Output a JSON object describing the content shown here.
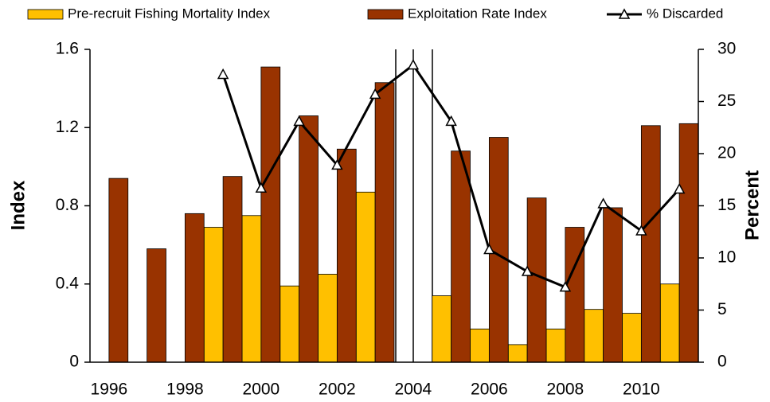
{
  "chart_data": {
    "type": "bar_line",
    "categories": [
      "1996",
      null,
      "1998",
      null,
      "2000",
      null,
      "2002",
      null,
      "2004",
      null,
      "2006",
      null,
      "2008",
      null,
      "2010",
      null
    ],
    "series": [
      {
        "name": "Pre-recruit Fishing Mortality Index",
        "color": "#ffc000",
        "type": "bar",
        "values": [
          null,
          null,
          null,
          0.69,
          0.75,
          0.39,
          0.45,
          0.87,
          null,
          0.34,
          0.17,
          0.09,
          0.17,
          0.27,
          0.25,
          0.4
        ]
      },
      {
        "name": "Exploitation Rate Index",
        "color": "#993300",
        "type": "bar",
        "values": [
          0.94,
          0.58,
          0.76,
          0.95,
          1.51,
          1.26,
          1.09,
          1.43,
          null,
          1.08,
          1.15,
          0.84,
          0.69,
          0.79,
          1.21,
          1.22
        ]
      },
      {
        "name": "% Discarded",
        "color": "#000000",
        "type": "line",
        "axis": "y2",
        "values": [
          null,
          null,
          null,
          27.6,
          16.7,
          23.1,
          18.9,
          25.7,
          28.5,
          23.1,
          10.8,
          8.7,
          7.2,
          15.2,
          12.6,
          16.6
        ]
      }
    ],
    "y_label": "Index",
    "y2_label": "Percent",
    "ylim": [
      0,
      1.6
    ],
    "yticks": [
      0,
      0.4,
      0.8,
      1.2,
      1.6
    ],
    "y2lim": [
      0,
      30
    ],
    "y2ticks": [
      0,
      5,
      10,
      15,
      20,
      25,
      30
    ]
  }
}
